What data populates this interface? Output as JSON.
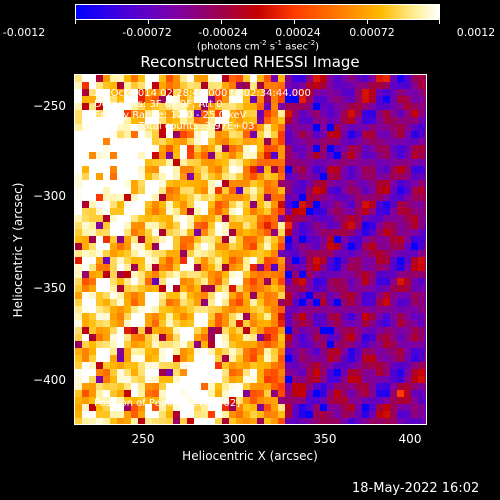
{
  "colorbar": {
    "tick_labels": [
      "-0.0012",
      "-0.00072",
      "-0.00024",
      "0.00024",
      "0.00072",
      "0.0012"
    ],
    "units_text": "(photons cm",
    "units_exp1": "-2",
    "units_mid": " s",
    "units_exp2": "-1",
    "units_mid2": " asec",
    "units_exp3": "-2",
    "units_end": ")"
  },
  "plot": {
    "title": "Reconstructed RHESSI Image",
    "info_line1": "25-Oct-2014 02:28:44.000 to 02:34:44.000",
    "info_line2": "Detectors: 3F 6F 9F, Att 0",
    "info_line3": "Energy Range: 12.0 - 25.0 keV",
    "info_line4": "Clean     Total counts: 3.97E+03",
    "peak_text": "Position of Peak = [278,-402]",
    "xlabel": "Heliocentric X (arcsec)",
    "ylabel": "Heliocentric Y (arcsec)",
    "x_ticks": [
      "250",
      "300",
      "350",
      "400"
    ],
    "y_ticks": [
      "−250",
      "−300",
      "−350",
      "−400"
    ],
    "x_range": [
      212,
      404
    ],
    "y_range": [
      -427,
      -237
    ],
    "peak_position": [
      278,
      -402
    ]
  },
  "timestamp": "18-May-2022 16:02"
}
